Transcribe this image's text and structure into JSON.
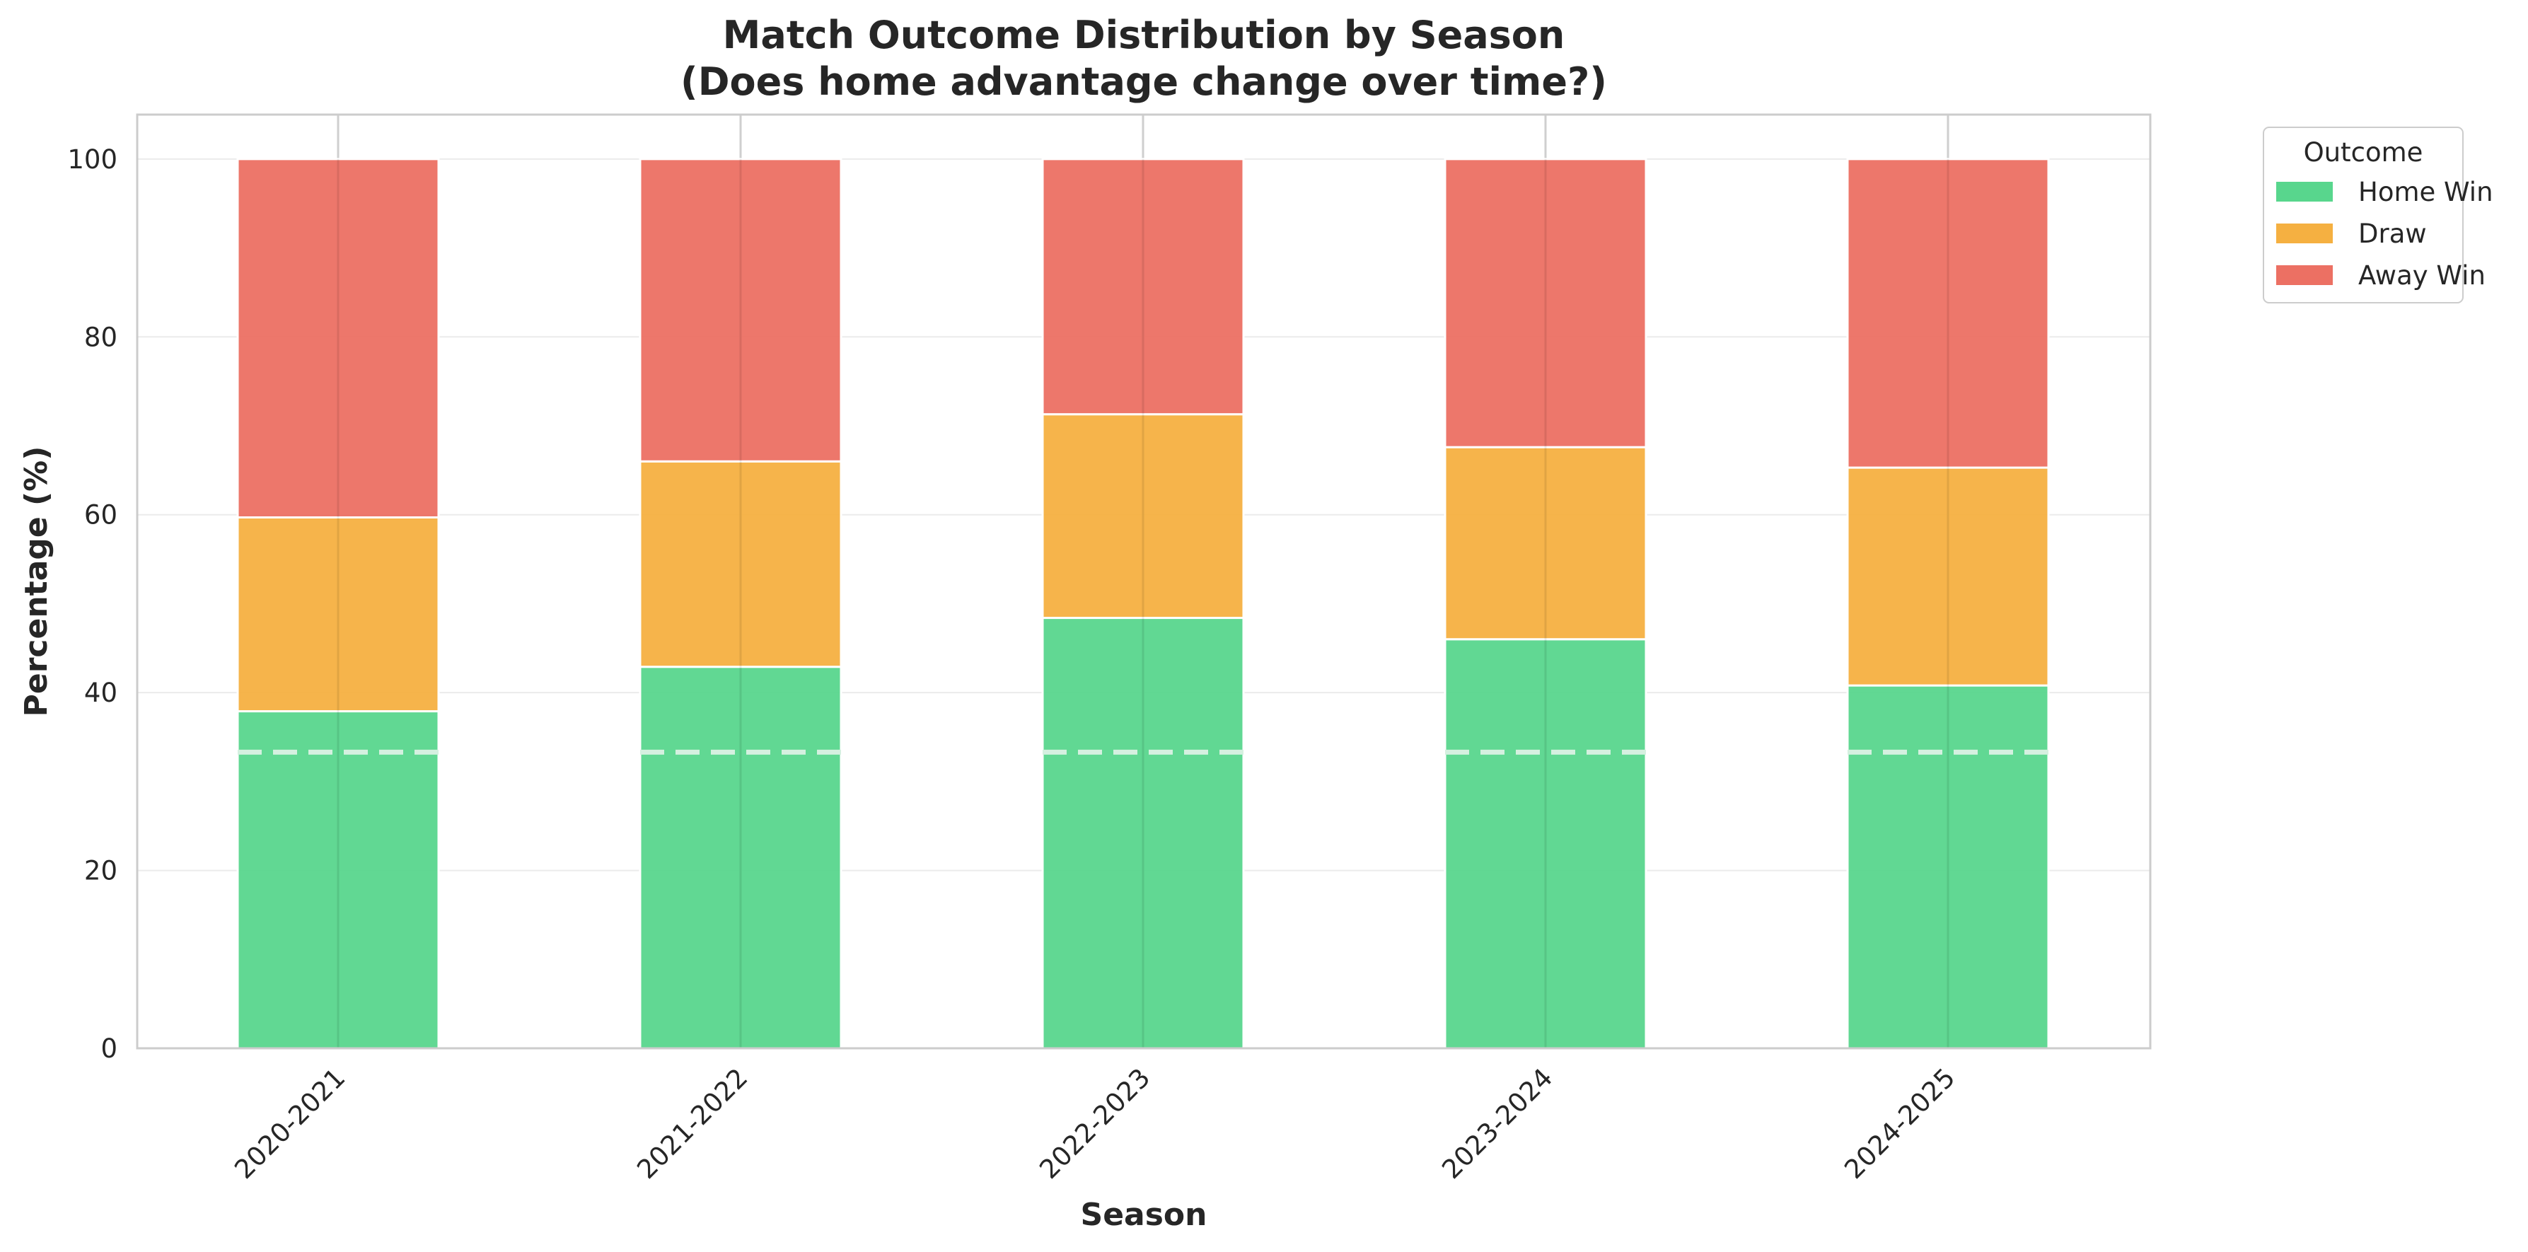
{
  "chart_data": {
    "type": "bar",
    "stacked": true,
    "title": "Match Outcome Distribution by Season",
    "subtitle": "(Does home advantage change over time?)",
    "xlabel": "Season",
    "ylabel": "Percentage (%)",
    "ylim": [
      0,
      105
    ],
    "yticks": [
      0,
      20,
      40,
      60,
      80,
      100
    ],
    "grid": true,
    "legend_title": "Outcome",
    "legend_position": "outside-top-right",
    "categories": [
      "2020-2021",
      "2021-2022",
      "2022-2023",
      "2023-2024",
      "2024-2025"
    ],
    "series": [
      {
        "name": "Home Win",
        "color": "#58d68d",
        "values": [
          37.9,
          42.9,
          48.4,
          46.0,
          40.8
        ]
      },
      {
        "name": "Draw",
        "color": "#f5b041",
        "values": [
          21.8,
          23.1,
          22.9,
          21.6,
          24.5
        ]
      },
      {
        "name": "Away Win",
        "color": "#ec7063",
        "values": [
          40.3,
          34.0,
          28.7,
          32.4,
          34.7
        ]
      }
    ],
    "reference_line": {
      "y": 33.3,
      "style": "dashed",
      "color": "#d5f0e0"
    }
  }
}
